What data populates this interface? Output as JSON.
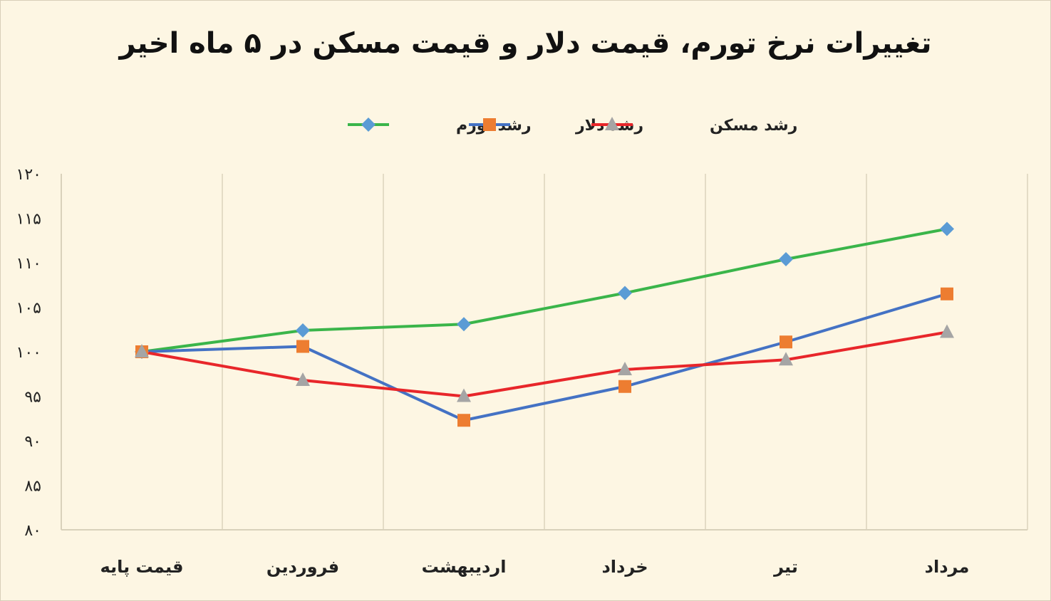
{
  "chart_data": {
    "type": "line",
    "title": "تغییرات نرخ تورم، قیمت دلار و قیمت مسکن در ۵ ماه اخیر",
    "xlabel": "",
    "ylabel": "",
    "categories": [
      "قیمت پایه",
      "فروردین",
      "اردیبهشت",
      "خرداد",
      "تیر",
      "مرداد"
    ],
    "ylim": [
      80,
      120
    ],
    "yticks": [
      80,
      85,
      90,
      95,
      100,
      105,
      110,
      115,
      120
    ],
    "ytick_labels": [
      "۸۰",
      "۸۵",
      "۹۰",
      "۹۵",
      "۱۰۰",
      "۱۰۵",
      "۱۱۰",
      "۱۱۵",
      "۱۲۰"
    ],
    "grid": "vertical",
    "legend_position": "top",
    "series": [
      {
        "name": "رشد تورم",
        "values": [
          100,
          102.4,
          103.1,
          106.6,
          110.4,
          113.8
        ],
        "color": "#3ab54a",
        "marker": "diamond",
        "marker_color": "#5b9bd5"
      },
      {
        "name": "رشد دلار",
        "values": [
          100,
          100.6,
          92.3,
          96.1,
          101.1,
          106.5
        ],
        "color": "#4472c4",
        "marker": "square",
        "marker_color": "#ed7d31"
      },
      {
        "name": "رشد مسکن",
        "values": [
          100,
          96.8,
          95.0,
          98.0,
          99.1,
          102.2
        ],
        "color": "#e8262a",
        "marker": "triangle",
        "marker_color": "#a5a5a5"
      }
    ]
  }
}
